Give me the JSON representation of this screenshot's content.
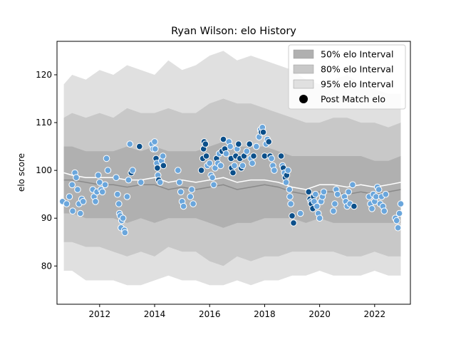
{
  "chart_data": {
    "type": "line",
    "title": "Ryan Wilson: elo History",
    "xlabel": "",
    "ylabel": "elo score",
    "xlim": [
      2010.45,
      2023.3
    ],
    "ylim": [
      72,
      127
    ],
    "xticks": [
      2012,
      2014,
      2016,
      2018,
      2020,
      2022
    ],
    "yticks": [
      80,
      90,
      100,
      110,
      120
    ],
    "grid": false,
    "legend_position": "top-right",
    "legend": [
      {
        "label": "50% elo Interval",
        "kind": "band",
        "color": "#b0b0b0"
      },
      {
        "label": "80% elo Interval",
        "kind": "band",
        "color": "#c8c8c8"
      },
      {
        "label": "95% elo Interval",
        "kind": "band",
        "color": "#e0e0e0"
      },
      {
        "label": "Post Match elo",
        "kind": "marker",
        "color": "#000000"
      }
    ],
    "colors": {
      "band50": "#b0b0b0",
      "band80": "#c8c8c8",
      "band95": "#e0e0e0",
      "median_line": "#ffffff",
      "mean_line": "#8a8a8a",
      "points_light": "#6aa6dc",
      "points_dark": "#0b4f8a",
      "point_edge": "#ffffff"
    },
    "series": [
      {
        "name": "Interval bands",
        "x": [
          2010.7,
          2011.0,
          2011.5,
          2012.0,
          2012.5,
          2013.0,
          2013.5,
          2014.0,
          2014.5,
          2015.0,
          2015.5,
          2016.0,
          2016.5,
          2017.0,
          2017.5,
          2018.0,
          2018.5,
          2019.0,
          2019.5,
          2020.0,
          2020.5,
          2021.0,
          2021.5,
          2022.0,
          2022.5,
          2022.95
        ],
        "b95_hi": [
          118,
          120,
          119,
          121,
          120,
          122,
          121,
          120,
          123,
          121,
          122,
          124,
          125,
          123,
          124,
          123,
          122,
          121,
          119,
          118,
          119,
          120,
          118,
          117,
          116,
          116
        ],
        "b80_hi": [
          111,
          112,
          111,
          112,
          111,
          113,
          112,
          112,
          113,
          112,
          112,
          114,
          115,
          114,
          114,
          113,
          112,
          111,
          110,
          110,
          111,
          111,
          110,
          110,
          109,
          110
        ],
        "b50_hi": [
          105,
          105,
          104,
          104,
          104,
          105,
          104,
          105,
          104,
          104,
          104,
          105,
          106,
          105,
          105,
          105,
          104,
          103,
          103,
          103,
          103,
          103,
          103,
          102,
          102,
          103
        ],
        "b50_lo": [
          91,
          91,
          90,
          90,
          90,
          89,
          90,
          89,
          90,
          90,
          90,
          89,
          88,
          89,
          89,
          90,
          90,
          90,
          89,
          90,
          89,
          89,
          89,
          89,
          89,
          89
        ],
        "b80_lo": [
          85,
          85,
          84,
          84,
          83,
          82,
          83,
          82,
          84,
          83,
          83,
          81,
          80,
          82,
          81,
          82,
          82,
          83,
          83,
          83,
          83,
          82,
          82,
          83,
          82,
          82
        ],
        "b95_lo": [
          79,
          79,
          77,
          77,
          77,
          76,
          76,
          77,
          78,
          77,
          77,
          76,
          76,
          77,
          76,
          77,
          77,
          78,
          78,
          79,
          78,
          78,
          78,
          79,
          78,
          78
        ]
      },
      {
        "name": "Median",
        "x": [
          2010.7,
          2011.0,
          2011.5,
          2012.0,
          2012.5,
          2013.0,
          2013.5,
          2014.0,
          2014.5,
          2015.0,
          2015.5,
          2016.0,
          2016.5,
          2017.0,
          2017.5,
          2018.0,
          2018.5,
          2019.0,
          2019.5,
          2020.0,
          2020.5,
          2021.0,
          2021.5,
          2022.0,
          2022.5,
          2022.95
        ],
        "y": [
          99.5,
          99.0,
          98.5,
          98.5,
          98.5,
          98.0,
          98.0,
          98.5,
          97.5,
          98.0,
          97.5,
          98.0,
          98.5,
          97.5,
          98.0,
          98.0,
          97.5,
          96.5,
          96.0,
          97.0,
          97.0,
          96.5,
          97.0,
          96.5,
          97.0,
          97.5
        ]
      },
      {
        "name": "Mean",
        "x": [
          2010.7,
          2011.0,
          2011.5,
          2012.0,
          2012.5,
          2013.0,
          2013.5,
          2014.0,
          2014.5,
          2015.0,
          2015.5,
          2016.0,
          2016.5,
          2017.0,
          2017.5,
          2018.0,
          2018.5,
          2019.0,
          2019.5,
          2020.0,
          2020.5,
          2021.0,
          2021.5,
          2022.0,
          2022.5,
          2022.95
        ],
        "y": [
          98.0,
          98.0,
          97.5,
          97.0,
          97.0,
          96.5,
          97.0,
          97.0,
          96.0,
          96.5,
          96.0,
          96.5,
          97.0,
          96.0,
          96.5,
          97.0,
          96.5,
          95.5,
          95.0,
          95.5,
          95.5,
          95.0,
          95.5,
          95.0,
          95.5,
          96.0
        ]
      },
      {
        "name": "Post Match elo",
        "points": [
          [
            2010.65,
            93.5,
            "l"
          ],
          [
            2010.8,
            93.0,
            "l"
          ],
          [
            2010.9,
            94.5,
            "l"
          ],
          [
            2011.0,
            97.0,
            "l"
          ],
          [
            2011.02,
            91.5,
            "l"
          ],
          [
            2011.1,
            99.5,
            "l"
          ],
          [
            2011.15,
            98.5,
            "l"
          ],
          [
            2011.2,
            96.0,
            "l"
          ],
          [
            2011.25,
            93.0,
            "l"
          ],
          [
            2011.3,
            91.0,
            "l"
          ],
          [
            2011.35,
            94.0,
            "l"
          ],
          [
            2011.4,
            93.5,
            "l"
          ],
          [
            2011.75,
            96.0,
            "l"
          ],
          [
            2011.8,
            94.5,
            "l"
          ],
          [
            2011.85,
            93.5,
            "l"
          ],
          [
            2011.9,
            95.5,
            "l"
          ],
          [
            2011.95,
            99.0,
            "l"
          ],
          [
            2012.0,
            97.5,
            "l"
          ],
          [
            2012.05,
            96.0,
            "l"
          ],
          [
            2012.1,
            95.5,
            "l"
          ],
          [
            2012.2,
            97.0,
            "l"
          ],
          [
            2012.25,
            102.5,
            "l"
          ],
          [
            2012.3,
            100.0,
            "l"
          ],
          [
            2012.6,
            98.5,
            "l"
          ],
          [
            2012.65,
            95.0,
            "l"
          ],
          [
            2012.7,
            93.0,
            "l"
          ],
          [
            2012.72,
            91.0,
            "l"
          ],
          [
            2012.75,
            90.5,
            "l"
          ],
          [
            2012.78,
            88.0,
            "l"
          ],
          [
            2012.8,
            89.5,
            "l"
          ],
          [
            2012.85,
            90.0,
            "l"
          ],
          [
            2012.9,
            87.5,
            "l"
          ],
          [
            2012.92,
            87.0,
            "l"
          ],
          [
            2013.0,
            94.5,
            "l"
          ],
          [
            2013.05,
            98.0,
            "l"
          ],
          [
            2013.1,
            105.5,
            "l"
          ],
          [
            2013.15,
            99.5,
            "d"
          ],
          [
            2013.2,
            100.0,
            "l"
          ],
          [
            2013.45,
            105.0,
            "d"
          ],
          [
            2013.5,
            97.5,
            "l"
          ],
          [
            2013.9,
            105.5,
            "l"
          ],
          [
            2013.95,
            104.5,
            "l"
          ],
          [
            2014.0,
            106.0,
            "l"
          ],
          [
            2014.02,
            104.5,
            "l"
          ],
          [
            2014.05,
            102.5,
            "d"
          ],
          [
            2014.08,
            101.5,
            "l"
          ],
          [
            2014.1,
            100.5,
            "d"
          ],
          [
            2014.12,
            99.0,
            "l"
          ],
          [
            2014.15,
            98.0,
            "d"
          ],
          [
            2014.2,
            97.5,
            "l"
          ],
          [
            2014.25,
            102.0,
            "l"
          ],
          [
            2014.3,
            103.0,
            "l"
          ],
          [
            2014.32,
            101.0,
            "d"
          ],
          [
            2014.85,
            100.0,
            "l"
          ],
          [
            2014.9,
            97.5,
            "l"
          ],
          [
            2014.95,
            95.5,
            "l"
          ],
          [
            2015.0,
            93.5,
            "l"
          ],
          [
            2015.05,
            92.5,
            "l"
          ],
          [
            2015.3,
            94.5,
            "l"
          ],
          [
            2015.35,
            96.0,
            "l"
          ],
          [
            2015.4,
            93.0,
            "l"
          ],
          [
            2015.7,
            100.0,
            "d"
          ],
          [
            2015.75,
            102.5,
            "d"
          ],
          [
            2015.78,
            104.5,
            "d"
          ],
          [
            2015.8,
            106.0,
            "d"
          ],
          [
            2015.85,
            105.5,
            "d"
          ],
          [
            2015.88,
            103.0,
            "d"
          ],
          [
            2015.92,
            101.0,
            "l"
          ],
          [
            2016.0,
            101.5,
            "l"
          ],
          [
            2016.05,
            99.0,
            "l"
          ],
          [
            2016.1,
            98.5,
            "l"
          ],
          [
            2016.15,
            97.0,
            "l"
          ],
          [
            2016.2,
            100.5,
            "l"
          ],
          [
            2016.25,
            102.5,
            "d"
          ],
          [
            2016.3,
            101.5,
            "l"
          ],
          [
            2016.35,
            103.5,
            "l"
          ],
          [
            2016.4,
            101.0,
            "l"
          ],
          [
            2016.45,
            104.0,
            "d"
          ],
          [
            2016.5,
            106.5,
            "d"
          ],
          [
            2016.55,
            104.5,
            "d"
          ],
          [
            2016.6,
            103.5,
            "l"
          ],
          [
            2016.7,
            106.0,
            "l"
          ],
          [
            2016.75,
            105.0,
            "l"
          ],
          [
            2016.78,
            102.5,
            "d"
          ],
          [
            2016.8,
            100.5,
            "d"
          ],
          [
            2016.85,
            99.5,
            "d"
          ],
          [
            2016.9,
            101.0,
            "l"
          ],
          [
            2016.95,
            103.0,
            "d"
          ],
          [
            2017.0,
            104.5,
            "l"
          ],
          [
            2017.05,
            105.5,
            "d"
          ],
          [
            2017.1,
            102.5,
            "d"
          ],
          [
            2017.15,
            100.5,
            "d"
          ],
          [
            2017.2,
            101.0,
            "l"
          ],
          [
            2017.25,
            103.0,
            "d"
          ],
          [
            2017.35,
            104.0,
            "l"
          ],
          [
            2017.45,
            105.5,
            "d"
          ],
          [
            2017.5,
            102.5,
            "l"
          ],
          [
            2017.55,
            101.5,
            "l"
          ],
          [
            2017.6,
            103.0,
            "d"
          ],
          [
            2017.7,
            105.0,
            "l"
          ],
          [
            2017.8,
            107.0,
            "l"
          ],
          [
            2017.85,
            108.5,
            "l"
          ],
          [
            2017.88,
            108.0,
            "d"
          ],
          [
            2017.92,
            109.0,
            "l"
          ],
          [
            2017.95,
            108.0,
            "d"
          ],
          [
            2018.0,
            103.0,
            "d"
          ],
          [
            2018.05,
            105.5,
            "l"
          ],
          [
            2018.1,
            106.5,
            "l"
          ],
          [
            2018.15,
            106.0,
            "d"
          ],
          [
            2018.2,
            103.0,
            "d"
          ],
          [
            2018.25,
            102.5,
            "l"
          ],
          [
            2018.3,
            101.0,
            "l"
          ],
          [
            2018.35,
            100.0,
            "l"
          ],
          [
            2018.6,
            103.0,
            "d"
          ],
          [
            2018.65,
            101.0,
            "l"
          ],
          [
            2018.68,
            100.5,
            "d"
          ],
          [
            2018.72,
            99.5,
            "l"
          ],
          [
            2018.75,
            98.5,
            "d"
          ],
          [
            2018.78,
            97.5,
            "l"
          ],
          [
            2018.8,
            99.0,
            "d"
          ],
          [
            2018.85,
            100.0,
            "l"
          ],
          [
            2018.9,
            96.0,
            "l"
          ],
          [
            2018.92,
            94.5,
            "l"
          ],
          [
            2018.95,
            93.0,
            "l"
          ],
          [
            2019.0,
            90.5,
            "d"
          ],
          [
            2019.05,
            89.0,
            "d"
          ],
          [
            2019.3,
            91.0,
            "l"
          ],
          [
            2019.6,
            95.5,
            "d"
          ],
          [
            2019.65,
            94.0,
            "d"
          ],
          [
            2019.68,
            93.5,
            "l"
          ],
          [
            2019.7,
            93.0,
            "d"
          ],
          [
            2019.75,
            92.0,
            "d"
          ],
          [
            2019.78,
            94.5,
            "d"
          ],
          [
            2019.8,
            93.5,
            "l"
          ],
          [
            2019.85,
            95.0,
            "l"
          ],
          [
            2019.9,
            92.5,
            "l"
          ],
          [
            2019.95,
            91.0,
            "l"
          ],
          [
            2020.0,
            90.0,
            "l"
          ],
          [
            2020.05,
            93.5,
            "l"
          ],
          [
            2020.1,
            94.5,
            "l"
          ],
          [
            2020.15,
            95.5,
            "l"
          ],
          [
            2020.5,
            91.5,
            "l"
          ],
          [
            2020.55,
            93.0,
            "l"
          ],
          [
            2020.6,
            96.0,
            "l"
          ],
          [
            2020.65,
            95.0,
            "l"
          ],
          [
            2020.9,
            94.5,
            "l"
          ],
          [
            2020.95,
            93.5,
            "l"
          ],
          [
            2021.0,
            92.5,
            "l"
          ],
          [
            2021.05,
            95.5,
            "l"
          ],
          [
            2021.1,
            93.0,
            "l"
          ],
          [
            2021.2,
            97.0,
            "l"
          ],
          [
            2021.25,
            92.5,
            "d"
          ],
          [
            2021.8,
            94.5,
            "l"
          ],
          [
            2021.85,
            93.0,
            "l"
          ],
          [
            2021.9,
            92.0,
            "l"
          ],
          [
            2021.95,
            95.0,
            "l"
          ],
          [
            2022.0,
            93.5,
            "l"
          ],
          [
            2022.05,
            94.5,
            "l"
          ],
          [
            2022.1,
            96.5,
            "l"
          ],
          [
            2022.15,
            96.0,
            "l"
          ],
          [
            2022.2,
            93.0,
            "l"
          ],
          [
            2022.25,
            94.5,
            "l"
          ],
          [
            2022.3,
            92.5,
            "l"
          ],
          [
            2022.35,
            91.5,
            "l"
          ],
          [
            2022.4,
            95.0,
            "l"
          ],
          [
            2022.75,
            90.0,
            "l"
          ],
          [
            2022.8,
            89.5,
            "l"
          ],
          [
            2022.85,
            88.0,
            "l"
          ],
          [
            2022.9,
            91.0,
            "l"
          ],
          [
            2022.95,
            93.0,
            "l"
          ]
        ]
      }
    ]
  }
}
